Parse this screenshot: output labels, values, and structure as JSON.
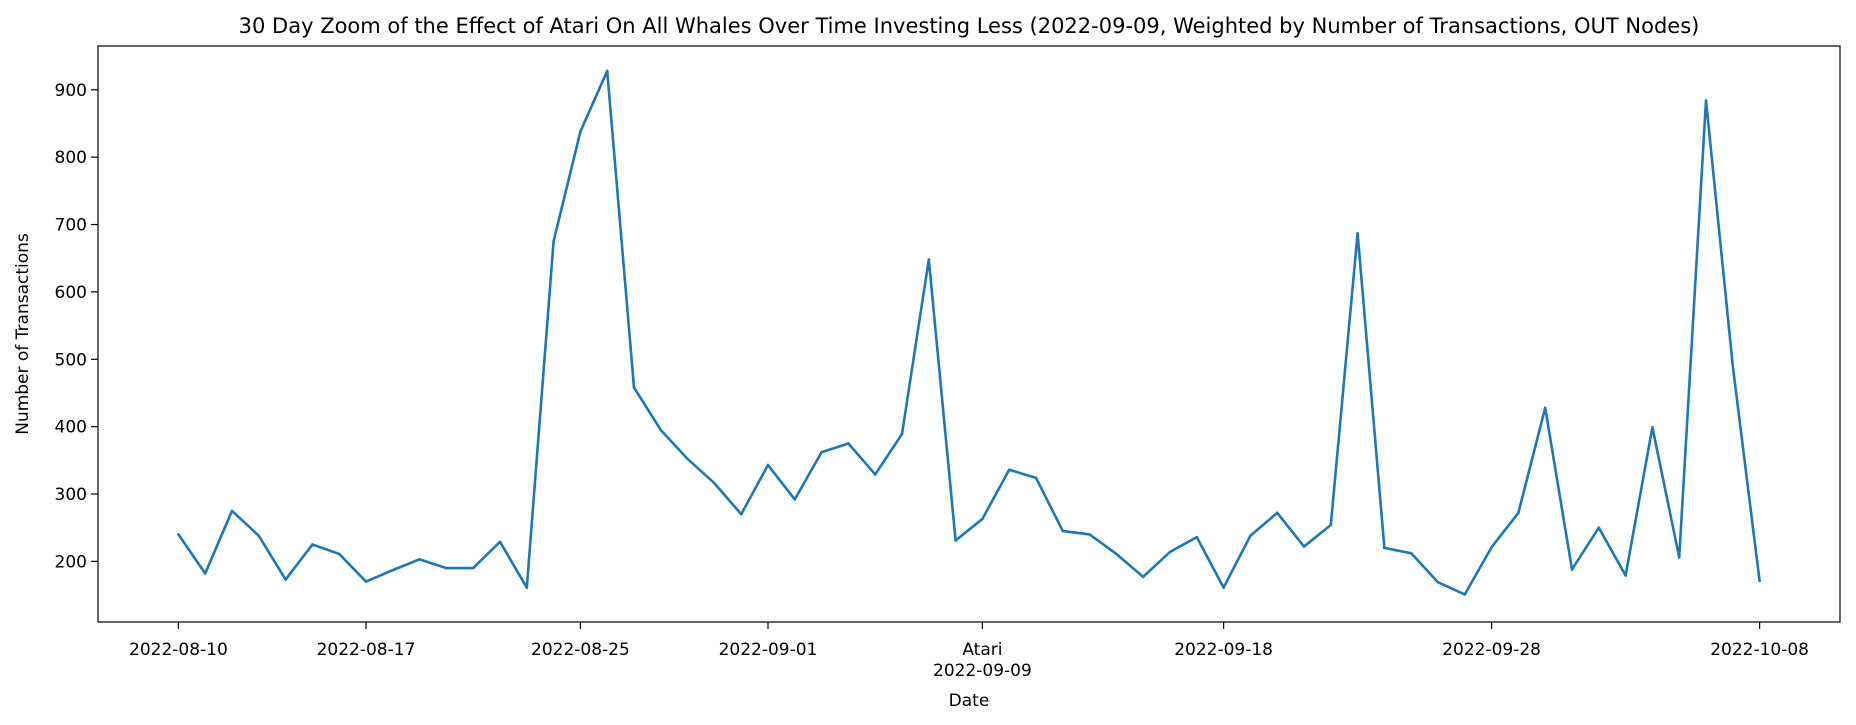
{
  "chart_data": {
    "type": "line",
    "title": "30 Day Zoom of the Effect of Atari On All Whales Over Time Investing Less (2022-09-09, Weighted by Number of Transactions, OUT Nodes)",
    "xlabel": "Date",
    "ylabel": "Number of Transactions",
    "ylim": [
      110,
      965
    ],
    "yticks": [
      200,
      300,
      400,
      500,
      600,
      700,
      800,
      900
    ],
    "xticks": [
      "2022-08-10",
      "2022-08-17",
      "2022-08-25",
      "2022-09-01",
      "2022-09-09",
      "2022-09-18",
      "2022-09-28",
      "2022-10-08"
    ],
    "event_marker": {
      "label": "Atari",
      "date": "2022-09-09"
    },
    "grid": false,
    "line_color": "#1f77b4",
    "series": [
      {
        "x": [
          "2022-08-10",
          "2022-08-11",
          "2022-08-12",
          "2022-08-13",
          "2022-08-14",
          "2022-08-15",
          "2022-08-16",
          "2022-08-17",
          "2022-08-18",
          "2022-08-19",
          "2022-08-20",
          "2022-08-21",
          "2022-08-22",
          "2022-08-23",
          "2022-08-24",
          "2022-08-25",
          "2022-08-26",
          "2022-08-27",
          "2022-08-28",
          "2022-08-29",
          "2022-08-30",
          "2022-08-31",
          "2022-09-01",
          "2022-09-02",
          "2022-09-03",
          "2022-09-04",
          "2022-09-05",
          "2022-09-06",
          "2022-09-07",
          "2022-09-08",
          "2022-09-09",
          "2022-09-10",
          "2022-09-11",
          "2022-09-12",
          "2022-09-13",
          "2022-09-14",
          "2022-09-15",
          "2022-09-16",
          "2022-09-17",
          "2022-09-18",
          "2022-09-19",
          "2022-09-20",
          "2022-09-21",
          "2022-09-22",
          "2022-09-23",
          "2022-09-24",
          "2022-09-25",
          "2022-09-26",
          "2022-09-27",
          "2022-09-28",
          "2022-09-29",
          "2022-09-30",
          "2022-10-01",
          "2022-10-02",
          "2022-10-03",
          "2022-10-04",
          "2022-10-05",
          "2022-10-06",
          "2022-10-07",
          "2022-10-08"
        ],
        "y": [
          240,
          182,
          275,
          238,
          173,
          225,
          211,
          170,
          187,
          203,
          190,
          190,
          229,
          161,
          675,
          838,
          928,
          458,
          395,
          352,
          316,
          270,
          343,
          292,
          362,
          375,
          329,
          389,
          648,
          231,
          263,
          336,
          324,
          245,
          240,
          211,
          177,
          214,
          236,
          161,
          238,
          272,
          222,
          254,
          687,
          220,
          212,
          169,
          151,
          221,
          272,
          428,
          188,
          250,
          179,
          399,
          206,
          884,
          490,
          171
        ]
      }
    ]
  }
}
